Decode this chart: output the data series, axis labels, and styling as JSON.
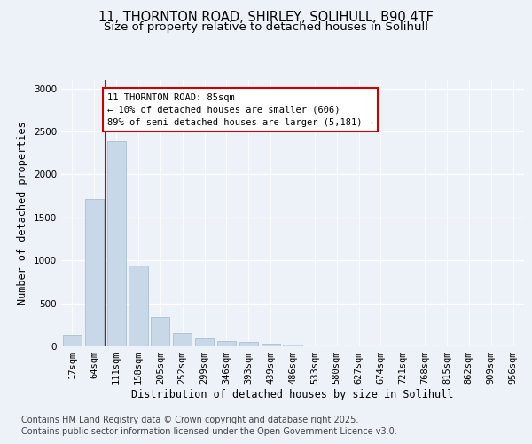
{
  "title_line1": "11, THORNTON ROAD, SHIRLEY, SOLIHULL, B90 4TF",
  "title_line2": "Size of property relative to detached houses in Solihull",
  "xlabel": "Distribution of detached houses by size in Solihull",
  "ylabel": "Number of detached properties",
  "categories": [
    "17sqm",
    "64sqm",
    "111sqm",
    "158sqm",
    "205sqm",
    "252sqm",
    "299sqm",
    "346sqm",
    "393sqm",
    "439sqm",
    "486sqm",
    "533sqm",
    "580sqm",
    "627sqm",
    "674sqm",
    "721sqm",
    "768sqm",
    "815sqm",
    "862sqm",
    "909sqm",
    "956sqm"
  ],
  "values": [
    130,
    1720,
    2390,
    940,
    340,
    160,
    90,
    65,
    50,
    30,
    20,
    5,
    2,
    2,
    1,
    0,
    0,
    0,
    0,
    0,
    0
  ],
  "bar_color": "#c8d8e8",
  "bar_edge_color": "#a0b8cc",
  "red_line_x": 1.5,
  "annotation_text": "11 THORNTON ROAD: 85sqm\n← 10% of detached houses are smaller (606)\n89% of semi-detached houses are larger (5,181) →",
  "annotation_box_color": "#ffffff",
  "annotation_box_edge_color": "#cc0000",
  "red_line_color": "#cc0000",
  "ylim": [
    0,
    3100
  ],
  "yticks": [
    0,
    500,
    1000,
    1500,
    2000,
    2500,
    3000
  ],
  "footer_line1": "Contains HM Land Registry data © Crown copyright and database right 2025.",
  "footer_line2": "Contains public sector information licensed under the Open Government Licence v3.0.",
  "bg_color": "#edf2f8",
  "plot_bg_color": "#edf2f8",
  "grid_color": "#ffffff",
  "title_fontsize": 10.5,
  "subtitle_fontsize": 9.5,
  "axis_label_fontsize": 8.5,
  "tick_fontsize": 7.5,
  "footer_fontsize": 7,
  "annotation_fontsize": 7.5
}
